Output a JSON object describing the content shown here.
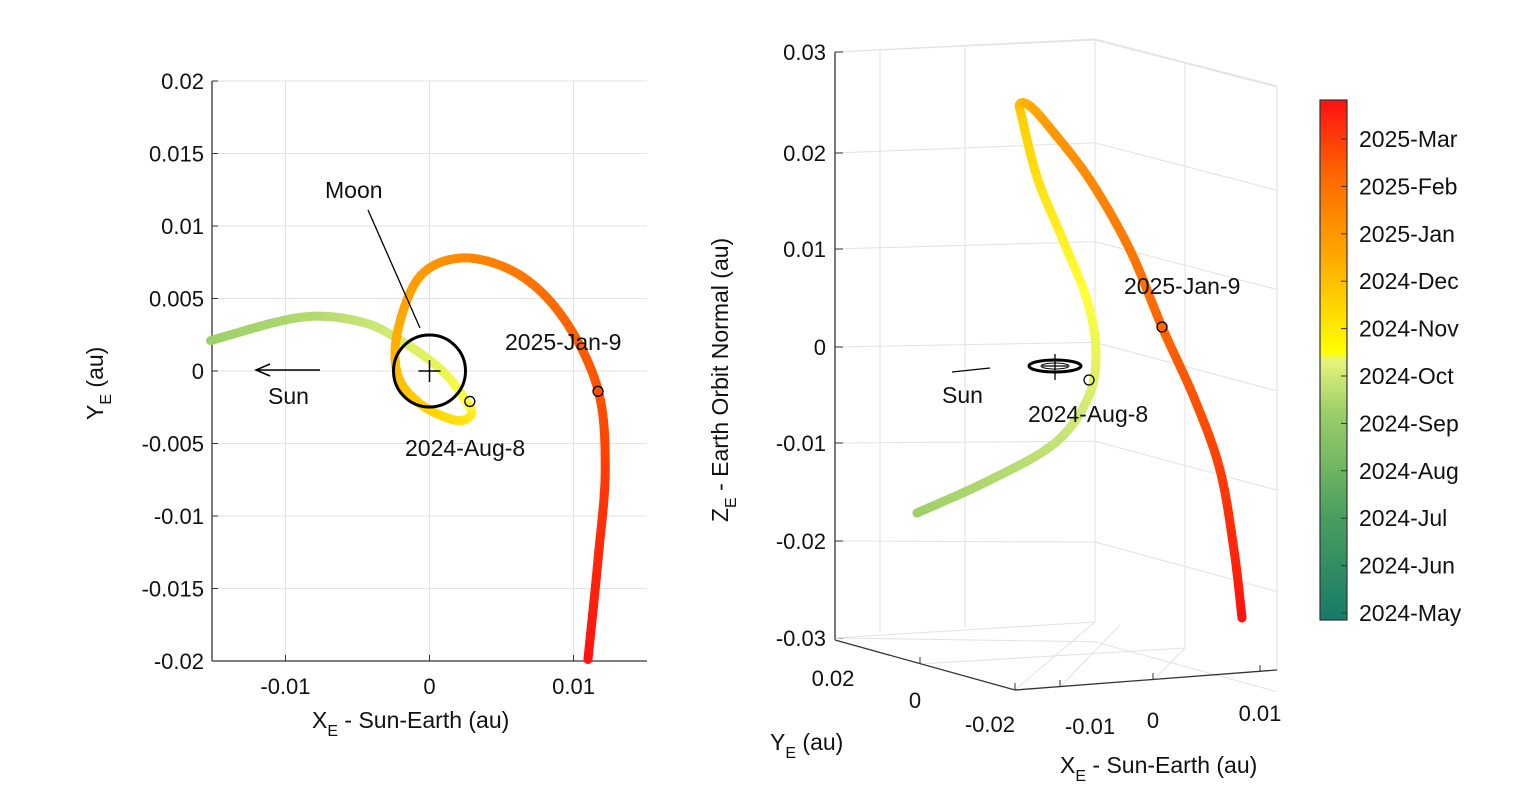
{
  "chart_data": [
    {
      "type": "line",
      "xlabel": "X",
      "xlabel_sub": "E",
      "xlabel_rest": " - Sun-Earth (au)",
      "ylabel": "Y",
      "ylabel_sub": "E",
      "ylabel_rest": " (au)",
      "xlim": [
        -0.0151,
        0.0151
      ],
      "ylim": [
        -0.02,
        0.02
      ],
      "xticks": [
        -0.01,
        0,
        0.01
      ],
      "xtick_labels": [
        "-0.01",
        "0",
        "0.01"
      ],
      "yticks": [
        0.02,
        0.015,
        0.01,
        0.005,
        0,
        -0.005,
        -0.01,
        -0.015,
        -0.02
      ],
      "ytick_labels": [
        "0.02",
        "0.015",
        "0.01",
        "0.005",
        "0",
        "-0.005",
        "-0.01",
        "-0.015",
        "-0.02"
      ],
      "grid": true,
      "trajectory": {
        "x": [
          -0.0152,
          -0.009,
          -0.0048,
          -0.002,
          0.0008,
          0.0025,
          0.0029,
          0.0018,
          -0.0006,
          -0.0022,
          -0.0022,
          -0.0006,
          0.0025,
          0.0063,
          0.0094,
          0.0117,
          0.0122,
          0.0117,
          0.011
        ],
        "y": [
          0.0021,
          0.0037,
          0.0034,
          0.0021,
          0.0001,
          -0.002,
          -0.003,
          -0.0034,
          -0.0023,
          -0.0003,
          0.0028,
          0.0066,
          0.0078,
          0.0066,
          0.0035,
          -0.0013,
          -0.0068,
          -0.013,
          -0.0199
        ]
      },
      "markers": [
        {
          "label": "2024-Aug-8",
          "x": 0.0028,
          "y": -0.0021
        },
        {
          "label": "2025-Jan-9",
          "x": 0.0117,
          "y": -0.0014
        }
      ],
      "moon": {
        "label": "Moon",
        "x": 0,
        "y": 0,
        "radius": 0.0025
      },
      "sun": {
        "label": "Sun"
      }
    },
    {
      "type": "line3d",
      "xlabel": "X",
      "xlabel_sub": "E",
      "xlabel_rest": " - Sun-Earth (au)",
      "ylabel": "Y",
      "ylabel_sub": "E",
      "ylabel_rest": " (au)",
      "zlabel": "Z",
      "zlabel_sub": "E",
      "zlabel_rest": " - Earth Orbit Normal (au)",
      "xtick_labels": [
        "-0.01",
        "0",
        "0.01"
      ],
      "ytick_labels": [
        "0.02",
        "0",
        "-0.02"
      ],
      "zlim": [
        -0.03,
        0.03
      ],
      "ztick_labels": [
        "0.03",
        "0.02",
        "0.01",
        "0",
        "-0.01",
        "-0.02",
        "-0.03"
      ],
      "grid": true,
      "markers": [
        {
          "label": "2024-Aug-8"
        },
        {
          "label": "2025-Jan-9"
        }
      ],
      "sun": {
        "label": "Sun"
      }
    }
  ],
  "colorbar": {
    "tick_labels": [
      "2025-Mar",
      "2025-Feb",
      "2025-Jan",
      "2024-Dec",
      "2024-Nov",
      "2024-Oct",
      "2024-Sep",
      "2024-Aug",
      "2024-Jul",
      "2024-Jun",
      "2024-May"
    ],
    "colormap": [
      "#177a68",
      "#3c9460",
      "#6db565",
      "#9ccf68",
      "#cfe878",
      "#ffff3a",
      "#ffd400",
      "#ffa800",
      "#ff7a00",
      "#ff4a00",
      "#ff1010"
    ]
  }
}
